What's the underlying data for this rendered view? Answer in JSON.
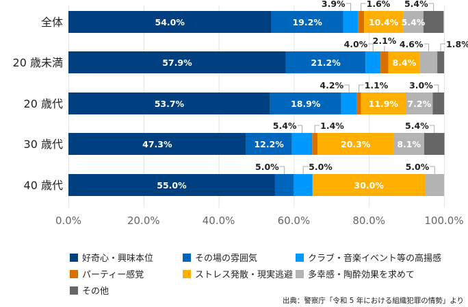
{
  "chart_data": {
    "type": "bar",
    "orientation": "horizontal",
    "stacked": true,
    "categories": [
      "全体",
      "20 歳未満",
      "20 歳代",
      "30 歳代",
      "40 歳代"
    ],
    "series": [
      {
        "name": "好奇心・興味本位",
        "color": "#003f80",
        "values": [
          54.0,
          57.9,
          53.7,
          47.3,
          55.0
        ],
        "labels": [
          "54.0%",
          "57.9%",
          "53.7%",
          "47.3%",
          "55.0%"
        ]
      },
      {
        "name": "その場の雰囲気",
        "color": "#0066bb",
        "values": [
          19.2,
          21.2,
          18.9,
          12.2,
          5.0
        ],
        "labels": [
          "19.2%",
          "21.2%",
          "18.9%",
          "12.2%",
          "5.0%"
        ]
      },
      {
        "name": "クラブ・音楽イベント等の高揚感",
        "color": "#0099ff",
        "values": [
          3.9,
          4.0,
          4.2,
          5.4,
          5.0
        ],
        "labels": [
          "3.9%",
          "4.0%",
          "4.2%",
          "5.4%",
          "5.0%"
        ]
      },
      {
        "name": "パーティー感覚",
        "color": "#d97000",
        "values": [
          1.6,
          2.1,
          1.1,
          1.4,
          0
        ],
        "labels": [
          "1.6%",
          "2.1%",
          "1.1%",
          "1.4%",
          ""
        ]
      },
      {
        "name": "ストレス発散・現実逃避",
        "color": "#ffaf00",
        "values": [
          10.4,
          8.4,
          11.9,
          20.3,
          30.0
        ],
        "labels": [
          "10.4%",
          "8.4%",
          "11.9%",
          "20.3%",
          "30.0%"
        ]
      },
      {
        "name": "多幸感・陶酔効果を求めて",
        "color": "#b3b3b3",
        "values": [
          5.4,
          4.6,
          7.2,
          8.1,
          5.0
        ],
        "labels": [
          "5.4%",
          "4.6%",
          "7.2%",
          "8.1%",
          "5.0%"
        ]
      },
      {
        "name": "その他",
        "color": "#666666",
        "values": [
          5.4,
          1.8,
          3.0,
          5.4,
          0
        ],
        "labels": [
          "5.4%",
          "1.8%",
          "3.0%",
          "5.4%",
          ""
        ]
      }
    ],
    "inside_labels": [
      [
        0,
        1,
        4,
        5
      ],
      [
        0,
        1,
        4
      ],
      [
        0,
        1,
        4,
        5
      ],
      [
        0,
        1,
        4,
        5
      ],
      [
        0,
        4
      ]
    ],
    "callouts": [
      [
        [
          2,
          "left"
        ],
        [
          3,
          "right"
        ],
        [
          6,
          "left"
        ]
      ],
      [
        [
          2,
          "left"
        ],
        [
          3,
          "up"
        ],
        [
          5,
          "left"
        ],
        [
          6,
          "right"
        ]
      ],
      [
        [
          2,
          "left"
        ],
        [
          3,
          "right"
        ],
        [
          6,
          "left"
        ]
      ],
      [
        [
          2,
          "left"
        ],
        [
          3,
          "right"
        ],
        [
          6,
          "left"
        ]
      ],
      [
        [
          1,
          "left"
        ],
        [
          2,
          "right"
        ],
        [
          5,
          "left"
        ]
      ]
    ],
    "xlim": [
      0,
      100
    ],
    "xticks": [
      "0.0%",
      "20.0%",
      "40.0%",
      "60.0%",
      "80.0%",
      "100.0%"
    ],
    "grid": true,
    "legend_position": "bottom",
    "title": "",
    "xlabel": "",
    "ylabel": ""
  },
  "source_note": "出典：警察庁「令和 5 年における組織犯罪の情勢」より"
}
